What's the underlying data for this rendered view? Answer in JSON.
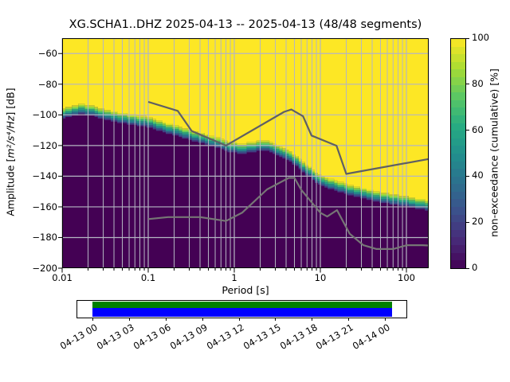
{
  "title": "XG.SCHA1..DHZ   2025-04-13 -- 2025-04-13  (48/48 segments)",
  "axes": {
    "xlabel": "Period [s]",
    "ylabel_prefix": "Amplitude [",
    "ylabel_math": "m²/s⁴/Hz",
    "ylabel_suffix": "] [dB]",
    "x_tick_labels": [
      "0.01",
      "0.1",
      "1",
      "10",
      "100"
    ],
    "y_tick_labels": [
      "−60",
      "−80",
      "−100",
      "−120",
      "−140",
      "−160",
      "−180",
      "−200"
    ],
    "y_tick_values": [
      -60,
      -80,
      -100,
      -120,
      -140,
      -160,
      -180,
      -200
    ],
    "grid": true
  },
  "colorbar": {
    "label": "non-exceedance (cumulative) [%]",
    "tick_labels": [
      "0",
      "20",
      "40",
      "60",
      "80",
      "100"
    ],
    "tick_values": [
      0,
      20,
      40,
      60,
      80,
      100
    ],
    "steps": 30
  },
  "timeline": {
    "labels": [
      "04-13 00",
      "04-13 03",
      "04-13 06",
      "04-13 09",
      "04-13 12",
      "04-13 15",
      "04-13 18",
      "04-13 21",
      "04-14 00"
    ]
  },
  "colors": {
    "cmap_min": "#440154",
    "cmap_max": "#fde725",
    "grid": "#b4b6c2",
    "nhnm_line": "#5f5f64",
    "nlnm_line": "#767675",
    "timeline_green": "#008000",
    "timeline_blue": "#0000ff",
    "viridis_anchors": [
      [
        0.0,
        "#440154"
      ],
      [
        0.125,
        "#472c7a"
      ],
      [
        0.25,
        "#3b518b"
      ],
      [
        0.375,
        "#2c718e"
      ],
      [
        0.5,
        "#21908d"
      ],
      [
        0.625,
        "#27ad81"
      ],
      [
        0.75,
        "#5cc863"
      ],
      [
        0.875,
        "#aadc32"
      ],
      [
        1.0,
        "#fde725"
      ]
    ]
  },
  "chart_data": {
    "type": "heatmap",
    "title": "XG.SCHA1..DHZ   2025-04-13 -- 2025-04-13  (48/48 segments)",
    "xlabel": "Period [s]",
    "ylabel": "Amplitude [m²/s⁴/Hz] [dB]",
    "colorbar_label": "non-exceedance (cumulative) [%]",
    "x_scale": "log",
    "x_range_s": [
      0.01,
      182
    ],
    "ylim_db": [
      -200,
      -50
    ],
    "colorbar_range_pct": [
      0,
      100
    ],
    "colormap": "viridis",
    "segments_used": "48/48",
    "period_step_octaves": 0.125,
    "transition_halfwidth_db": 3.3,
    "cumulative_boundary_db": [
      [
        0.01,
        -99
      ],
      [
        0.013,
        -97.3
      ],
      [
        0.017,
        -96.3
      ],
      [
        0.022,
        -97.3
      ],
      [
        0.03,
        -99.5
      ],
      [
        0.042,
        -101.5
      ],
      [
        0.06,
        -103
      ],
      [
        0.08,
        -104
      ],
      [
        0.1,
        -104.7
      ],
      [
        0.14,
        -107.5
      ],
      [
        0.2,
        -110
      ],
      [
        0.3,
        -113
      ],
      [
        0.45,
        -115.8
      ],
      [
        0.65,
        -118.3
      ],
      [
        0.9,
        -121
      ],
      [
        1.2,
        -122
      ],
      [
        1.6,
        -121
      ],
      [
        2.2,
        -120
      ],
      [
        2.8,
        -121.3
      ],
      [
        3.5,
        -124
      ],
      [
        4.5,
        -127.5
      ],
      [
        5.5,
        -131
      ],
      [
        7.0,
        -136
      ],
      [
        8.5,
        -140
      ],
      [
        10,
        -142.5
      ],
      [
        13,
        -145
      ],
      [
        17,
        -147
      ],
      [
        22,
        -149
      ],
      [
        30,
        -151
      ],
      [
        45,
        -153.3
      ],
      [
        70,
        -155
      ],
      [
        100,
        -156.5
      ],
      [
        140,
        -158
      ],
      [
        182,
        -159
      ]
    ],
    "noise_models": {
      "nhnm": [
        [
          0.1,
          -91.5
        ],
        [
          0.22,
          -97.4
        ],
        [
          0.32,
          -110.5
        ],
        [
          0.8,
          -120.0
        ],
        [
          3.8,
          -98.0
        ],
        [
          4.6,
          -96.5
        ],
        [
          6.3,
          -100.9
        ],
        [
          7.9,
          -113.5
        ],
        [
          15.4,
          -120.1
        ],
        [
          20,
          -138.5
        ],
        [
          182,
          -128.8
        ]
      ],
      "nlnm": [
        [
          0.1,
          -168.0
        ],
        [
          0.17,
          -166.7
        ],
        [
          0.4,
          -166.7
        ],
        [
          0.8,
          -169.2
        ],
        [
          1.24,
          -163.7
        ],
        [
          2.4,
          -148.6
        ],
        [
          4.3,
          -141.1
        ],
        [
          5.0,
          -141.1
        ],
        [
          6.0,
          -148.9
        ],
        [
          10,
          -163.8
        ],
        [
          12,
          -166.3
        ],
        [
          15.6,
          -162.1
        ],
        [
          21.9,
          -177.5
        ],
        [
          31.6,
          -185.0
        ],
        [
          45,
          -187.5
        ],
        [
          70,
          -187.5
        ],
        [
          101,
          -185.0
        ],
        [
          154,
          -185.0
        ],
        [
          182,
          -185.2
        ]
      ]
    }
  }
}
